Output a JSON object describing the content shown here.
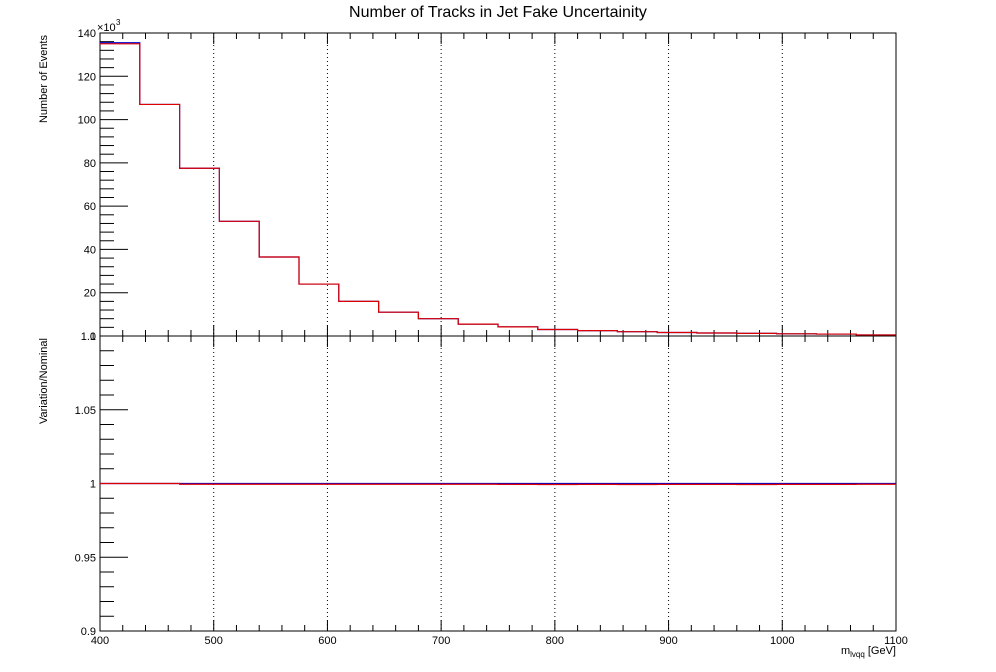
{
  "title": "Number of Tracks in Jet Fake Uncertainity",
  "colors": {
    "nominal": "#0000cc",
    "variation": "#dd0000",
    "grid": "#000000"
  },
  "chart_data": [
    {
      "type": "line",
      "panel": "top",
      "ylabel": "Number of Events",
      "exponent_label": "×10",
      "exponent_power": "3",
      "xlim": [
        400,
        1100
      ],
      "ylim": [
        0,
        140
      ],
      "y_ticks": [
        20,
        40,
        60,
        80,
        100,
        120,
        140
      ],
      "y_tick_labels": [
        "20",
        "40",
        "60",
        "80",
        "100",
        "120",
        "140"
      ],
      "y_zero_label": "0",
      "grid_x": true,
      "bin_edges": [
        400,
        435,
        470,
        505,
        540,
        575,
        610,
        645,
        680,
        715,
        750,
        785,
        820,
        855,
        890,
        925,
        960,
        995,
        1030,
        1065,
        1100
      ],
      "series": [
        {
          "values": [
            135.5,
            107.0,
            77.5,
            53.0,
            36.5,
            24.0,
            16.0,
            11.0,
            8.0,
            5.5,
            4.2,
            3.0,
            2.5,
            2.0,
            1.6,
            1.4,
            1.2,
            1.0,
            0.9,
            0.5
          ]
        },
        {
          "values": [
            135.0,
            107.0,
            77.5,
            53.0,
            36.5,
            24.0,
            16.0,
            11.0,
            8.0,
            5.5,
            4.2,
            3.0,
            2.5,
            2.0,
            1.6,
            1.4,
            1.2,
            1.0,
            0.9,
            0.5
          ]
        }
      ]
    },
    {
      "type": "line",
      "panel": "bottom",
      "ylabel": "Variation/Nominal",
      "xlabel_main": "m",
      "xlabel_sub": "lvqq",
      "xlabel_unit": " [GeV]",
      "xlim": [
        400,
        1100
      ],
      "ylim": [
        0.9,
        1.1
      ],
      "y_ticks": [
        0.9,
        0.95,
        1.0,
        1.05,
        1.1
      ],
      "y_tick_labels": [
        "0.9",
        "0.95",
        "1",
        "1.05",
        "1.1"
      ],
      "x_ticks": [
        400,
        500,
        600,
        700,
        800,
        900,
        1000,
        1100
      ],
      "x_tick_labels": [
        "400",
        "500",
        "600",
        "700",
        "800",
        "900",
        "1000",
        "1100"
      ],
      "grid_x": true,
      "bin_edges": [
        400,
        435,
        470,
        505,
        540,
        575,
        610,
        645,
        680,
        715,
        750,
        785,
        820,
        855,
        890,
        925,
        960,
        995,
        1030,
        1065,
        1100
      ],
      "series": [
        {
          "values": [
            1.0,
            1.0,
            1.0,
            1.0,
            1.0,
            1.0,
            1.0,
            1.0,
            1.0,
            1.0,
            1.0,
            1.0,
            1.0,
            1.0,
            1.0,
            1.0,
            1.0,
            1.0,
            1.0,
            1.0
          ]
        },
        {
          "values": [
            1.0,
            1.0,
            0.9995,
            0.9995,
            0.9995,
            0.9995,
            0.9995,
            0.9995,
            0.9995,
            0.9995,
            0.9994,
            0.9993,
            0.9994,
            0.9993,
            0.9994,
            0.9994,
            0.9993,
            0.9994,
            0.9994,
            0.9995
          ]
        }
      ]
    }
  ]
}
